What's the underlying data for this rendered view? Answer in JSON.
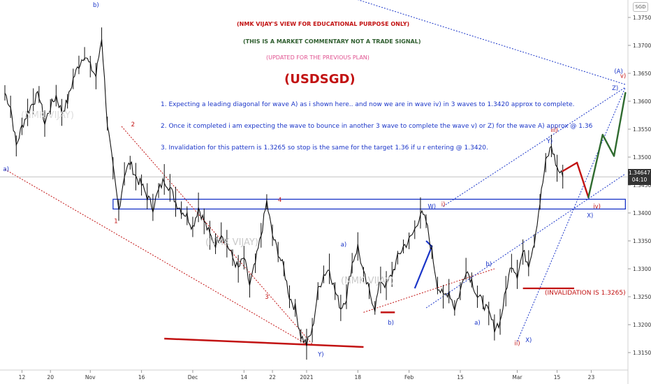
{
  "header": {
    "disclaimer_1": "(NMK VIJAY'S VIEW FOR EDUCATIONAL PURPOSE ONLY)",
    "disclaimer_2": "(THIS IS A MARKET COMMENTARY NOT A TRADE SIGNAL)",
    "disclaimer_3": "(UPDATED FOR THE PREVIOUS PLAN)",
    "symbol": "(USDSGD)"
  },
  "notes": {
    "n1": "1. Expecting a leading diagonal for wave A) as i shown here.. and now we are in wave iv) in 3 waves to 1.3420 approx to complete.",
    "n2": "2. Once it completed i am expecting the wave to bounce in another 3 wave to complete the wave v) or Z) for the wave A) approx @ 1.36",
    "n3": "3. Invalidation for this pattern is 1.3265 so stop is the same for the target 1.36 if u r entering @ 1.3420."
  },
  "invalidation_label": "(INVALIDATION IS 1.3265)",
  "watermark": "(NMK VIJAY)",
  "currency_badge": "SGD",
  "price_tag": {
    "price": "1.34647",
    "countdown": "04:10"
  },
  "colors": {
    "blue_labels": "#1a35c8",
    "red_labels": "#c21212",
    "projection_red": "#c21212",
    "projection_green": "#2f6b2f",
    "price_line": "#222222"
  },
  "chart_data": {
    "type": "line",
    "symbol": "USDSGD",
    "x_tick_labels": [
      "12",
      "20",
      "Nov",
      "16",
      "Dec",
      "14",
      "22",
      "2021",
      "18",
      "Feb",
      "15",
      "Mar",
      "15",
      "23"
    ],
    "y_tick_labels": [
      "1.37500",
      "1.37000",
      "1.36500",
      "1.36000",
      "1.35500",
      "1.35000",
      "1.34500",
      "1.34000",
      "1.33500",
      "1.33000",
      "1.32500",
      "1.32000",
      "1.31500"
    ],
    "ylim": [
      1.3135,
      1.3785
    ],
    "x_ticks": [
      {
        "label": "12",
        "x": 3
      },
      {
        "label": "20",
        "x": 8
      },
      {
        "label": "Nov",
        "x": 15
      },
      {
        "label": "16",
        "x": 24
      },
      {
        "label": "Dec",
        "x": 33
      },
      {
        "label": "14",
        "x": 42
      },
      {
        "label": "22",
        "x": 47
      },
      {
        "label": "2021",
        "x": 53
      },
      {
        "label": "18",
        "x": 62
      },
      {
        "label": "Feb",
        "x": 71
      },
      {
        "label": "15",
        "x": 80
      },
      {
        "label": "Mar",
        "x": 90
      },
      {
        "label": "15",
        "x": 97
      },
      {
        "label": "23",
        "x": 103
      }
    ],
    "price_series": [
      [
        0,
        1.3615
      ],
      [
        1,
        1.359
      ],
      [
        2,
        1.352
      ],
      [
        3,
        1.3555
      ],
      [
        4,
        1.358
      ],
      [
        5,
        1.36
      ],
      [
        6,
        1.3612
      ],
      [
        7,
        1.356
      ],
      [
        8,
        1.359
      ],
      [
        9,
        1.361
      ],
      [
        10,
        1.358
      ],
      [
        11,
        1.36
      ],
      [
        12,
        1.364
      ],
      [
        13,
        1.3665
      ],
      [
        14,
        1.3685
      ],
      [
        15,
        1.3662
      ],
      [
        16,
        1.3645
      ],
      [
        17,
        1.3715
      ],
      [
        18,
        1.356
      ],
      [
        19,
        1.348
      ],
      [
        20,
        1.3405
      ],
      [
        21,
        1.347
      ],
      [
        22,
        1.349
      ],
      [
        23,
        1.3465
      ],
      [
        24,
        1.345
      ],
      [
        25,
        1.343
      ],
      [
        26,
        1.341
      ],
      [
        27,
        1.344
      ],
      [
        28,
        1.346
      ],
      [
        29,
        1.3445
      ],
      [
        30,
        1.342
      ],
      [
        31,
        1.3405
      ],
      [
        32,
        1.3395
      ],
      [
        33,
        1.3375
      ],
      [
        34,
        1.341
      ],
      [
        35,
        1.3385
      ],
      [
        36,
        1.336
      ],
      [
        37,
        1.3345
      ],
      [
        38,
        1.3365
      ],
      [
        39,
        1.3345
      ],
      [
        40,
        1.332
      ],
      [
        41,
        1.33
      ],
      [
        42,
        1.332
      ],
      [
        43,
        1.327
      ],
      [
        44,
        1.331
      ],
      [
        45,
        1.336
      ],
      [
        46,
        1.342
      ],
      [
        47,
        1.336
      ],
      [
        48,
        1.333
      ],
      [
        49,
        1.33
      ],
      [
        50,
        1.325
      ],
      [
        51,
        1.323
      ],
      [
        52,
        1.318
      ],
      [
        53,
        1.3165
      ],
      [
        54,
        1.319
      ],
      [
        55,
        1.326
      ],
      [
        56,
        1.329
      ],
      [
        57,
        1.33
      ],
      [
        58,
        1.326
      ],
      [
        59,
        1.323
      ],
      [
        60,
        1.325
      ],
      [
        61,
        1.331
      ],
      [
        62,
        1.334
      ],
      [
        63,
        1.329
      ],
      [
        64,
        1.326
      ],
      [
        65,
        1.323
      ],
      [
        66,
        1.328
      ],
      [
        67,
        1.327
      ],
      [
        68,
        1.329
      ],
      [
        69,
        1.332
      ],
      [
        70,
        1.334
      ],
      [
        71,
        1.335
      ],
      [
        72,
        1.337
      ],
      [
        73,
        1.34
      ],
      [
        74,
        1.3385
      ],
      [
        75,
        1.333
      ],
      [
        76,
        1.327
      ],
      [
        77,
        1.325
      ],
      [
        78,
        1.326
      ],
      [
        79,
        1.323
      ],
      [
        80,
        1.326
      ],
      [
        81,
        1.33
      ],
      [
        82,
        1.328
      ],
      [
        83,
        1.325
      ],
      [
        84,
        1.324
      ],
      [
        85,
        1.322
      ],
      [
        86,
        1.3195
      ],
      [
        87,
        1.3205
      ],
      [
        88,
        1.326
      ],
      [
        89,
        1.331
      ],
      [
        90,
        1.329
      ],
      [
        91,
        1.333
      ],
      [
        92,
        1.331
      ],
      [
        93,
        1.335
      ],
      [
        94,
        1.342
      ],
      [
        95,
        1.349
      ],
      [
        96,
        1.352
      ],
      [
        97,
        1.348
      ],
      [
        98,
        1.3465
      ]
    ],
    "projection": [
      {
        "from": [
          98,
          1.3475
        ],
        "to": [
          100.5,
          1.349
        ],
        "color": "red"
      },
      {
        "from": [
          100.5,
          1.349
        ],
        "to": [
          102.5,
          1.3428
        ],
        "color": "red"
      },
      {
        "from": [
          102.5,
          1.3428
        ],
        "to": [
          105,
          1.354
        ],
        "color": "green"
      },
      {
        "from": [
          105,
          1.354
        ],
        "to": [
          107,
          1.3502
        ],
        "color": "green"
      },
      {
        "from": [
          107,
          1.3502
        ],
        "to": [
          109,
          1.3615
        ],
        "color": "green"
      }
    ],
    "current_price": 1.34647,
    "horizontal_levels": [
      {
        "name": "invalidation",
        "price": 1.3265,
        "x_start": 91,
        "x_end": 100
      }
    ],
    "zone": {
      "price_low": 1.34,
      "price_high": 1.3417,
      "x_start": 19,
      "x_end": 109
    },
    "wave_labels": [
      {
        "text": "b)",
        "x": 16,
        "price": 1.3769,
        "color": "blue"
      },
      {
        "text": "a)",
        "x": 0.2,
        "price": 1.3475,
        "color": "blue"
      },
      {
        "text": "2",
        "x": 22.5,
        "price": 1.3555,
        "color": "red"
      },
      {
        "text": "1",
        "x": 19.5,
        "price": 1.3382,
        "color": "red"
      },
      {
        "text": "4",
        "x": 48.3,
        "price": 1.342,
        "color": "red"
      },
      {
        "text": "3",
        "x": 46,
        "price": 1.3246,
        "color": "red"
      },
      {
        "text": "Y)",
        "x": 55.5,
        "price": 1.3143,
        "color": "blue"
      },
      {
        "text": "a)",
        "x": 59.5,
        "price": 1.334,
        "color": "blue"
      },
      {
        "text": "b)",
        "x": 67.8,
        "price": 1.32,
        "color": "blue"
      },
      {
        "text": "W)",
        "x": 75,
        "price": 1.3408,
        "color": "blue"
      },
      {
        "text": "i)",
        "x": 77,
        "price": 1.3412,
        "color": "red"
      },
      {
        "text": "b)",
        "x": 85,
        "price": 1.3305,
        "color": "blue"
      },
      {
        "text": "a)",
        "x": 83,
        "price": 1.32,
        "color": "blue"
      },
      {
        "text": "ii)",
        "x": 90,
        "price": 1.3163,
        "color": "red"
      },
      {
        "text": "X)",
        "x": 92,
        "price": 1.3169,
        "color": "blue"
      },
      {
        "text": "iii)",
        "x": 96.5,
        "price": 1.3545,
        "color": "red"
      },
      {
        "text": "Y)",
        "x": 95.7,
        "price": 1.3525,
        "color": "blue"
      },
      {
        "text": "iv)",
        "x": 104,
        "price": 1.3408,
        "color": "red"
      },
      {
        "text": "X)",
        "x": 102.8,
        "price": 1.3392,
        "color": "blue"
      },
      {
        "text": "Z)",
        "x": 107.2,
        "price": 1.362,
        "color": "blue"
      },
      {
        "text": "(A)",
        "x": 107.8,
        "price": 1.365,
        "color": "blue"
      },
      {
        "text": "v)",
        "x": 108.6,
        "price": 1.3642,
        "color": "red"
      }
    ]
  }
}
